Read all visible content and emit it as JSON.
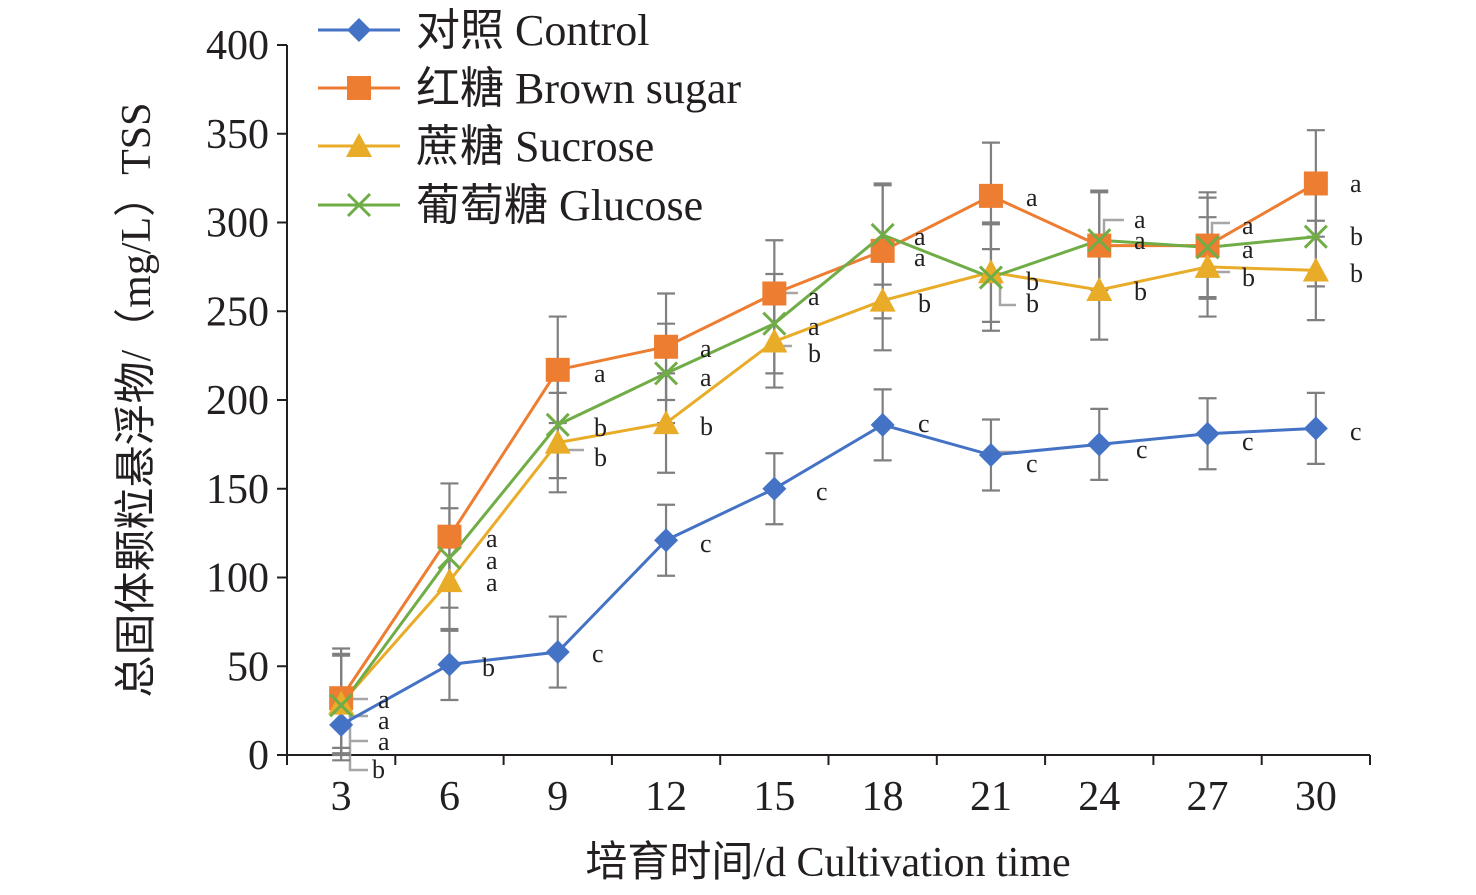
{
  "chart_data": {
    "type": "line",
    "xlabel": "培育时间/d Cultivation time",
    "ylabel": "总固体颗粒悬浮物/（mg/L）TSS",
    "x": [
      3,
      6,
      9,
      12,
      15,
      18,
      21,
      24,
      27,
      30
    ],
    "xticks": [
      "3",
      "6",
      "9",
      "12",
      "15",
      "18",
      "21",
      "24",
      "27",
      "30"
    ],
    "ylim": [
      0,
      400
    ],
    "yticks": [
      "0",
      "50",
      "100",
      "150",
      "200",
      "250",
      "300",
      "350",
      "400"
    ],
    "legend_position": "top-left",
    "grid": false,
    "series": [
      {
        "name": "对照 Control",
        "color": "#4472c4",
        "marker": "diamond",
        "values": [
          17,
          51,
          58,
          121,
          150,
          186,
          169,
          175,
          181,
          184
        ],
        "error": [
          20,
          20,
          20,
          20,
          20,
          20,
          20,
          20,
          20,
          20
        ],
        "letters": [
          "b",
          "b",
          "c",
          "c",
          "c",
          "c",
          "c",
          "c",
          "c",
          "c"
        ]
      },
      {
        "name": "红糖 Brown sugar",
        "color": "#ed7d31",
        "marker": "square",
        "values": [
          32,
          123,
          217,
          230,
          260,
          284,
          315,
          287,
          287,
          322
        ],
        "error": [
          28,
          30,
          30,
          30,
          30,
          38,
          30,
          30,
          30,
          30
        ],
        "letters": [
          "a",
          "a",
          "a",
          "a",
          "a",
          "a",
          "a",
          "a",
          "a",
          "a"
        ]
      },
      {
        "name": "蔗糖 Sucrose",
        "color": "#e9ac28",
        "marker": "triangle",
        "values": [
          29,
          98,
          176,
          187,
          233,
          256,
          272,
          262,
          275,
          273
        ],
        "error": [
          28,
          28,
          28,
          28,
          26,
          28,
          28,
          28,
          28,
          28
        ],
        "letters": [
          "a",
          "a",
          "b",
          "b",
          "b",
          "b",
          "b",
          "b",
          "b",
          "b"
        ]
      },
      {
        "name": "葡萄糖 Glucose",
        "color": "#70ad47",
        "marker": "x",
        "values": [
          28,
          111,
          186,
          215,
          243,
          293,
          269,
          290,
          286,
          292
        ],
        "error": [
          28,
          28,
          30,
          28,
          28,
          28,
          30,
          28,
          28,
          28
        ],
        "letters": [
          "a",
          "a",
          "b",
          "a",
          "a",
          "a",
          "b",
          "a",
          "a",
          "b"
        ]
      }
    ]
  }
}
